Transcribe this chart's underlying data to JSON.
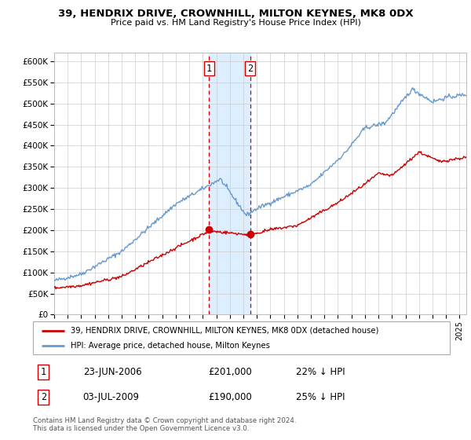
{
  "title": "39, HENDRIX DRIVE, CROWNHILL, MILTON KEYNES, MK8 0DX",
  "subtitle": "Price paid vs. HM Land Registry's House Price Index (HPI)",
  "legend_label_red": "39, HENDRIX DRIVE, CROWNHILL, MILTON KEYNES, MK8 0DX (detached house)",
  "legend_label_blue": "HPI: Average price, detached house, Milton Keynes",
  "transaction1_date": "23-JUN-2006",
  "transaction1_price": "£201,000",
  "transaction1_hpi": "22% ↓ HPI",
  "transaction2_date": "03-JUL-2009",
  "transaction2_price": "£190,000",
  "transaction2_hpi": "25% ↓ HPI",
  "footer": "Contains HM Land Registry data © Crown copyright and database right 2024.\nThis data is licensed under the Open Government Licence v3.0.",
  "ylim": [
    0,
    620000
  ],
  "yticks": [
    0,
    50000,
    100000,
    150000,
    200000,
    250000,
    300000,
    350000,
    400000,
    450000,
    500000,
    550000,
    600000
  ],
  "ytick_labels": [
    "£0",
    "£50K",
    "£100K",
    "£150K",
    "£200K",
    "£250K",
    "£300K",
    "£350K",
    "£400K",
    "£450K",
    "£500K",
    "£550K",
    "£600K"
  ],
  "red_color": "#cc0000",
  "blue_color": "#6699cc",
  "shading_color": "#ddeeff",
  "vline_color": "#cc0000",
  "transaction1_x": 2006.47,
  "transaction1_y": 201000,
  "transaction2_x": 2009.5,
  "transaction2_y": 190000,
  "xmin": 1995.0,
  "xmax": 2025.5
}
